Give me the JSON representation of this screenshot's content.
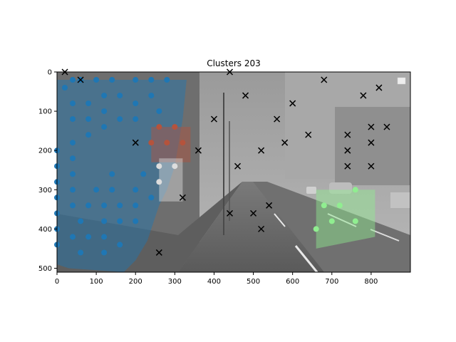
{
  "chart_data": {
    "type": "scatter",
    "title": "Clusters 203",
    "xlabel": "",
    "ylabel": "",
    "xlim": [
      0,
      900
    ],
    "ylim": [
      510,
      0
    ],
    "y_inverted": true,
    "x_ticks": [
      0,
      100,
      200,
      300,
      400,
      500,
      600,
      700,
      800
    ],
    "y_ticks": [
      0,
      100,
      200,
      300,
      400,
      500
    ],
    "background": "grayscale street scene photo",
    "legend": "top-right (empty)",
    "clusters": [
      {
        "color": "#1f77b4",
        "hull": [
          [
            0,
            490
          ],
          [
            0,
            20
          ],
          [
            330,
            20
          ],
          [
            320,
            120
          ],
          [
            300,
            240
          ],
          [
            280,
            300
          ],
          [
            260,
            340
          ],
          [
            230,
            430
          ],
          [
            200,
            480
          ],
          [
            170,
            510
          ],
          [
            30,
            500
          ]
        ],
        "points": [
          [
            20,
            40
          ],
          [
            40,
            20
          ],
          [
            60,
            20
          ],
          [
            100,
            20
          ],
          [
            140,
            20
          ],
          [
            200,
            20
          ],
          [
            240,
            20
          ],
          [
            280,
            20
          ],
          [
            40,
            80
          ],
          [
            80,
            80
          ],
          [
            120,
            60
          ],
          [
            160,
            60
          ],
          [
            200,
            80
          ],
          [
            240,
            60
          ],
          [
            40,
            120
          ],
          [
            80,
            120
          ],
          [
            120,
            100
          ],
          [
            160,
            120
          ],
          [
            200,
            120
          ],
          [
            260,
            100
          ],
          [
            80,
            160
          ],
          [
            120,
            140
          ],
          [
            0,
            200
          ],
          [
            40,
            180
          ],
          [
            40,
            220
          ],
          [
            0,
            240
          ],
          [
            40,
            260
          ],
          [
            140,
            260
          ],
          [
            220,
            260
          ],
          [
            0,
            280
          ],
          [
            40,
            300
          ],
          [
            100,
            300
          ],
          [
            140,
            300
          ],
          [
            200,
            300
          ],
          [
            0,
            320
          ],
          [
            40,
            340
          ],
          [
            80,
            340
          ],
          [
            120,
            340
          ],
          [
            160,
            340
          ],
          [
            200,
            340
          ],
          [
            240,
            320
          ],
          [
            0,
            360
          ],
          [
            60,
            380
          ],
          [
            120,
            380
          ],
          [
            160,
            380
          ],
          [
            200,
            380
          ],
          [
            0,
            400
          ],
          [
            40,
            420
          ],
          [
            80,
            420
          ],
          [
            120,
            420
          ],
          [
            0,
            440
          ],
          [
            60,
            460
          ],
          [
            120,
            460
          ],
          [
            160,
            440
          ]
        ]
      },
      {
        "color": "#b5533c",
        "hull": [
          [
            240,
            140
          ],
          [
            340,
            140
          ],
          [
            340,
            230
          ],
          [
            240,
            230
          ]
        ],
        "points": [
          [
            260,
            140
          ],
          [
            300,
            140
          ],
          [
            240,
            180
          ],
          [
            280,
            180
          ],
          [
            320,
            180
          ]
        ]
      },
      {
        "color": "#dddddd",
        "hull": [
          [
            260,
            220
          ],
          [
            320,
            220
          ],
          [
            320,
            330
          ],
          [
            260,
            330
          ]
        ],
        "points": [
          [
            260,
            240
          ],
          [
            300,
            240
          ],
          [
            260,
            280
          ]
        ]
      },
      {
        "color": "#90ee90",
        "hull": [
          [
            660,
            300
          ],
          [
            810,
            300
          ],
          [
            810,
            420
          ],
          [
            660,
            450
          ]
        ],
        "points": [
          [
            660,
            400
          ],
          [
            680,
            340
          ],
          [
            700,
            380
          ],
          [
            720,
            340
          ],
          [
            760,
            300
          ],
          [
            760,
            380
          ]
        ]
      }
    ],
    "noise": {
      "marker": "x",
      "color": "#000000",
      "points": [
        [
          20,
          0
        ],
        [
          60,
          20
        ],
        [
          440,
          0
        ],
        [
          680,
          20
        ],
        [
          820,
          40
        ],
        [
          480,
          60
        ],
        [
          780,
          60
        ],
        [
          600,
          80
        ],
        [
          400,
          120
        ],
        [
          560,
          120
        ],
        [
          740,
          160
        ],
        [
          640,
          160
        ],
        [
          800,
          140
        ],
        [
          840,
          140
        ],
        [
          200,
          180
        ],
        [
          580,
          180
        ],
        [
          800,
          180
        ],
        [
          360,
          200
        ],
        [
          520,
          200
        ],
        [
          740,
          200
        ],
        [
          460,
          240
        ],
        [
          740,
          240
        ],
        [
          800,
          240
        ],
        [
          320,
          320
        ],
        [
          540,
          340
        ],
        [
          440,
          360
        ],
        [
          500,
          360
        ],
        [
          520,
          400
        ],
        [
          260,
          460
        ]
      ]
    }
  }
}
